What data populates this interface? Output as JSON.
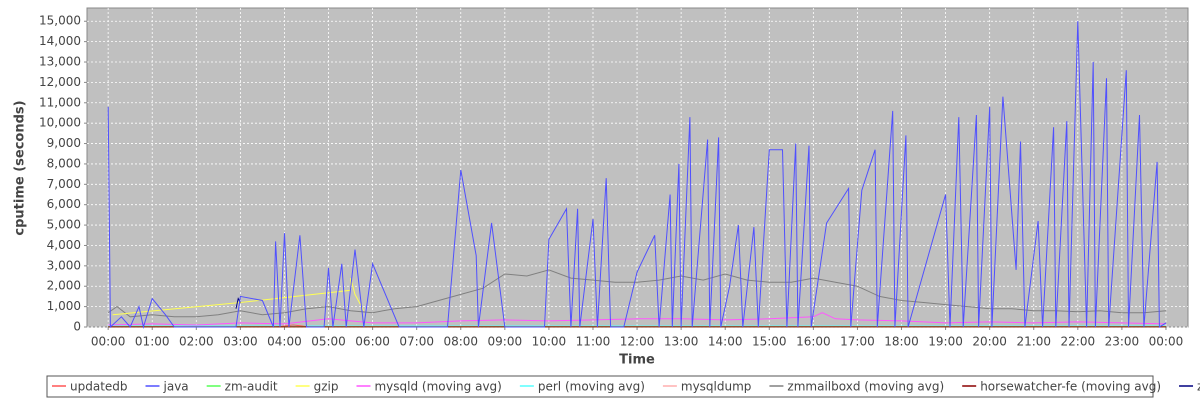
{
  "chart_data": {
    "type": "line",
    "xlabel": "Time",
    "ylabel": "cputime (seconds)",
    "xlim": [
      -0.48,
      24.5
    ],
    "ylim": [
      0,
      15650
    ],
    "grid": true,
    "legend": "bottom",
    "xticks": [
      {
        "value": 0,
        "label": "00:00"
      },
      {
        "value": 1,
        "label": "01:00"
      },
      {
        "value": 2,
        "label": "02:00"
      },
      {
        "value": 3,
        "label": "03:00"
      },
      {
        "value": 4,
        "label": "04:00"
      },
      {
        "value": 5,
        "label": "05:00"
      },
      {
        "value": 6,
        "label": "06:00"
      },
      {
        "value": 7,
        "label": "07:00"
      },
      {
        "value": 8,
        "label": "08:00"
      },
      {
        "value": 9,
        "label": "09:00"
      },
      {
        "value": 10,
        "label": "10:00"
      },
      {
        "value": 11,
        "label": "11:00"
      },
      {
        "value": 12,
        "label": "12:00"
      },
      {
        "value": 13,
        "label": "13:00"
      },
      {
        "value": 14,
        "label": "14:00"
      },
      {
        "value": 15,
        "label": "15:00"
      },
      {
        "value": 16,
        "label": "16:00"
      },
      {
        "value": 17,
        "label": "17:00"
      },
      {
        "value": 18,
        "label": "18:00"
      },
      {
        "value": 19,
        "label": "19:00"
      },
      {
        "value": 20,
        "label": "20:00"
      },
      {
        "value": 21,
        "label": "21:00"
      },
      {
        "value": 22,
        "label": "22:00"
      },
      {
        "value": 23,
        "label": "23:00"
      },
      {
        "value": 24,
        "label": "00:00"
      }
    ],
    "yticks": [
      0,
      {
        "value": 1000,
        "label": "1,000"
      },
      {
        "value": 2000,
        "label": "2,000"
      },
      {
        "value": 3000,
        "label": "3,000"
      },
      {
        "value": 4000,
        "label": "4,000"
      },
      {
        "value": 5000,
        "label": "5,000"
      },
      {
        "value": 6000,
        "label": "6,000"
      },
      {
        "value": 7000,
        "label": "7,000"
      },
      {
        "value": 8000,
        "label": "8,000"
      },
      {
        "value": 9000,
        "label": "9,000"
      },
      {
        "value": 10000,
        "label": "10,000"
      },
      {
        "value": 11000,
        "label": "11,000"
      },
      {
        "value": 12000,
        "label": "12,000"
      },
      {
        "value": 13000,
        "label": "13,000"
      },
      {
        "value": 14000,
        "label": "14,000"
      },
      {
        "value": 15000,
        "label": "15,000"
      }
    ],
    "series": [
      {
        "name": "updatedb",
        "color": "#ff5555",
        "x": [
          3.8,
          4.2,
          4.6
        ],
        "values": [
          0,
          100,
          0
        ]
      },
      {
        "name": "java",
        "color": "#5050ff",
        "x": [
          0,
          0.05,
          0.3,
          0.5,
          0.7,
          0.8,
          1.0,
          1.3,
          1.5,
          2.5,
          2.9,
          3.0,
          3.5,
          3.75,
          3.8,
          3.9,
          4.0,
          4.1,
          4.35,
          4.5,
          4.9,
          5.0,
          5.1,
          5.3,
          5.4,
          5.6,
          5.8,
          6.0,
          6.6,
          7.0,
          7.7,
          8.0,
          8.35,
          8.4,
          8.7,
          9.0,
          9.5,
          9.9,
          10.0,
          10.4,
          10.5,
          10.65,
          10.7,
          11.0,
          11.1,
          11.3,
          11.4,
          11.7,
          12.0,
          12.4,
          12.5,
          12.75,
          12.8,
          12.95,
          13.0,
          13.2,
          13.25,
          13.6,
          13.65,
          13.85,
          13.9,
          14.1,
          14.3,
          14.4,
          14.65,
          14.75,
          15.0,
          15.3,
          15.4,
          15.6,
          15.65,
          15.9,
          15.95,
          16.3,
          16.8,
          16.85,
          17.1,
          17.4,
          17.45,
          17.8,
          17.85,
          18.1,
          18.15,
          19.0,
          19.1,
          19.3,
          19.4,
          19.7,
          19.75,
          20.0,
          20.05,
          20.3,
          20.6,
          20.7,
          20.8,
          21.1,
          21.2,
          21.45,
          21.5,
          21.75,
          21.8,
          22.0,
          22.2,
          22.35,
          22.4,
          22.65,
          22.7,
          23.1,
          23.15,
          23.4,
          23.5,
          23.8,
          23.85,
          24.0
        ],
        "values": [
          10800,
          0,
          500,
          0,
          1000,
          0,
          1400,
          600,
          0,
          0,
          0,
          1500,
          1300,
          0,
          4200,
          0,
          4600,
          0,
          4500,
          0,
          0,
          2900,
          0,
          3100,
          0,
          3800,
          0,
          3100,
          0,
          0,
          0,
          7700,
          3500,
          0,
          5100,
          0,
          0,
          0,
          4300,
          5800,
          0,
          5800,
          0,
          5300,
          0,
          7300,
          0,
          0,
          2700,
          4500,
          0,
          6500,
          0,
          8000,
          0,
          10300,
          0,
          9200,
          0,
          9300,
          0,
          2000,
          5000,
          0,
          4900,
          0,
          8700,
          8700,
          0,
          9000,
          0,
          8900,
          0,
          5100,
          6800,
          0,
          6700,
          8700,
          0,
          10600,
          0,
          9400,
          0,
          6500,
          0,
          10300,
          0,
          10400,
          0,
          10800,
          0,
          11300,
          2800,
          9100,
          0,
          5200,
          0,
          9800,
          0,
          10100,
          0,
          15000,
          0,
          13000,
          0,
          12200,
          0,
          12600,
          0,
          10400,
          0,
          8100,
          0,
          200
        ]
      },
      {
        "name": "zm-audit",
        "color": "#55ff55",
        "x": [
          0,
          24
        ],
        "values": [
          10,
          10
        ]
      },
      {
        "name": "gzip",
        "color": "#ffff55",
        "x": [
          0.1,
          3.0,
          5.5,
          5.5,
          5.6,
          5.8
        ],
        "values": [
          600,
          1200,
          1800,
          2400,
          1600,
          800
        ]
      },
      {
        "name": "mysqld (moving avg)",
        "color": "#ff55ff",
        "x": [
          0,
          1,
          2,
          3,
          4,
          5,
          5.5,
          6,
          7,
          8,
          9,
          10,
          11,
          12,
          13,
          14,
          15,
          16,
          16.2,
          16.5,
          17,
          18,
          19,
          20,
          21,
          22,
          23,
          24
        ],
        "values": [
          100,
          150,
          100,
          200,
          150,
          400,
          300,
          200,
          200,
          300,
          350,
          300,
          350,
          400,
          400,
          350,
          400,
          500,
          700,
          400,
          350,
          300,
          200,
          250,
          200,
          250,
          200,
          150
        ]
      },
      {
        "name": "perl (moving avg)",
        "color": "#55ffff",
        "x": [
          0,
          24
        ],
        "values": [
          50,
          50
        ]
      },
      {
        "name": "mysqldump",
        "color": "#ffafaf",
        "x": [
          0,
          24
        ],
        "values": [
          20,
          20
        ]
      },
      {
        "name": "zmmailboxd (moving avg)",
        "color": "#808080",
        "x": [
          0,
          0.2,
          0.5,
          1,
          1.5,
          2,
          2.5,
          3,
          3.5,
          4,
          4.5,
          5,
          5.5,
          6,
          6.5,
          7,
          7.5,
          8,
          8.5,
          9,
          9.5,
          10,
          10.5,
          11,
          11.5,
          12,
          12.5,
          13,
          13.5,
          14,
          14.5,
          15,
          15.5,
          16,
          16.5,
          17,
          17.5,
          18,
          18.5,
          19,
          19.5,
          20,
          20.5,
          21,
          21.5,
          22,
          22.5,
          23,
          23.5,
          24
        ],
        "values": [
          700,
          1000,
          500,
          600,
          500,
          500,
          600,
          800,
          600,
          700,
          900,
          1000,
          800,
          700,
          900,
          1000,
          1300,
          1600,
          1900,
          2600,
          2500,
          2800,
          2400,
          2300,
          2200,
          2200,
          2300,
          2500,
          2300,
          2600,
          2300,
          2200,
          2200,
          2400,
          2200,
          2000,
          1500,
          1300,
          1200,
          1100,
          1000,
          900,
          900,
          800,
          800,
          750,
          800,
          700,
          700,
          800
        ]
      },
      {
        "name": "horsewatcher-fe (moving avg)",
        "color": "#8b0000",
        "x": [
          0,
          24
        ],
        "values": [
          5,
          5
        ]
      },
      {
        "name": "zmcompresslogs",
        "color": "#000080",
        "x": [
          2.9,
          2.95,
          3.0
        ],
        "values": [
          900,
          1400,
          1200
        ]
      }
    ]
  }
}
